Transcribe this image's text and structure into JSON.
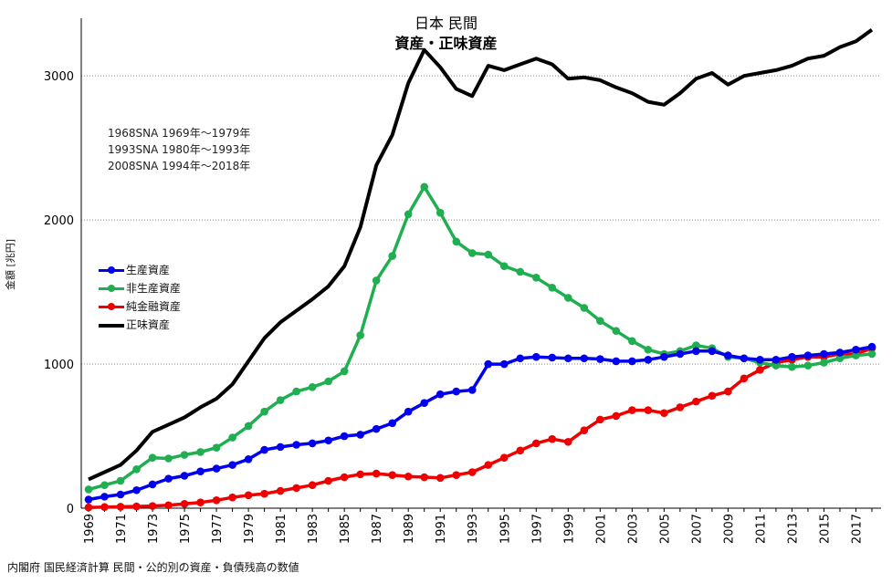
{
  "title": "日本 民間",
  "subtitle": "資産・正味資産",
  "notes": [
    "1968SNA 1969年〜1979年",
    "1993SNA 1980年〜1993年",
    "2008SNA 1994年〜2018年"
  ],
  "source": "内閣府 国民経済計算  民間・公的別の資産・負債残高の数値",
  "chart_data": {
    "type": "line",
    "title": "日本 民間 資産・正味資産",
    "ylabel": "金額 [兆円]",
    "xlabel": "",
    "ylim": [
      0,
      3400
    ],
    "yticks": [
      0,
      1000,
      2000,
      3000
    ],
    "grid": true,
    "legend_position": "left-middle",
    "x": [
      1969,
      1970,
      1971,
      1972,
      1973,
      1974,
      1975,
      1976,
      1977,
      1978,
      1979,
      1980,
      1981,
      1982,
      1983,
      1984,
      1985,
      1986,
      1987,
      1988,
      1989,
      1990,
      1991,
      1992,
      1993,
      1994,
      1995,
      1996,
      1997,
      1998,
      1999,
      2000,
      2001,
      2002,
      2003,
      2004,
      2005,
      2006,
      2007,
      2008,
      2009,
      2010,
      2011,
      2012,
      2013,
      2014,
      2015,
      2016,
      2017,
      2018
    ],
    "xticks": [
      1969,
      1971,
      1973,
      1975,
      1977,
      1979,
      1981,
      1983,
      1985,
      1987,
      1989,
      1991,
      1993,
      1995,
      1997,
      1999,
      2001,
      2003,
      2005,
      2007,
      2009,
      2011,
      2013,
      2015,
      2017
    ],
    "series": [
      {
        "name": "生産資産",
        "color": "#0000ee",
        "markers": true,
        "values": [
          60,
          80,
          95,
          125,
          165,
          205,
          225,
          255,
          275,
          300,
          340,
          405,
          425,
          440,
          450,
          470,
          500,
          510,
          550,
          590,
          670,
          730,
          790,
          810,
          820,
          1000,
          1000,
          1040,
          1050,
          1045,
          1040,
          1040,
          1035,
          1020,
          1020,
          1030,
          1050,
          1070,
          1090,
          1090,
          1060,
          1040,
          1030,
          1030,
          1050,
          1060,
          1070,
          1080,
          1100,
          1120
        ]
      },
      {
        "name": "非生産資産",
        "color": "#1fae50",
        "markers": true,
        "values": [
          130,
          160,
          190,
          270,
          350,
          345,
          370,
          390,
          420,
          490,
          570,
          670,
          750,
          810,
          840,
          880,
          950,
          1200,
          1580,
          1750,
          2040,
          2230,
          2050,
          1850,
          1770,
          1760,
          1680,
          1640,
          1600,
          1530,
          1460,
          1390,
          1300,
          1230,
          1160,
          1100,
          1070,
          1090,
          1130,
          1110,
          1050,
          1040,
          1010,
          990,
          980,
          990,
          1010,
          1040,
          1060,
          1070
        ]
      },
      {
        "name": "純金融資産",
        "color": "#ee0000",
        "markers": true,
        "values": [
          5,
          8,
          10,
          12,
          15,
          20,
          30,
          40,
          55,
          75,
          90,
          100,
          120,
          140,
          160,
          190,
          215,
          235,
          240,
          230,
          220,
          215,
          210,
          230,
          250,
          300,
          350,
          400,
          450,
          480,
          460,
          540,
          615,
          640,
          680,
          680,
          660,
          700,
          740,
          780,
          810,
          900,
          960,
          1010,
          1030,
          1050,
          1050,
          1070,
          1070,
          1110
        ]
      },
      {
        "name": "正味資産",
        "color": "#000000",
        "markers": false,
        "values": [
          200,
          250,
          300,
          400,
          530,
          580,
          630,
          700,
          760,
          860,
          1020,
          1180,
          1290,
          1370,
          1450,
          1540,
          1680,
          1950,
          2380,
          2590,
          2950,
          3180,
          3060,
          2910,
          2860,
          3070,
          3040,
          3080,
          3120,
          3080,
          2980,
          2990,
          2970,
          2920,
          2880,
          2820,
          2800,
          2880,
          2980,
          3020,
          2940,
          3000,
          3020,
          3040,
          3070,
          3120,
          3140,
          3200,
          3240,
          3320
        ]
      }
    ]
  }
}
